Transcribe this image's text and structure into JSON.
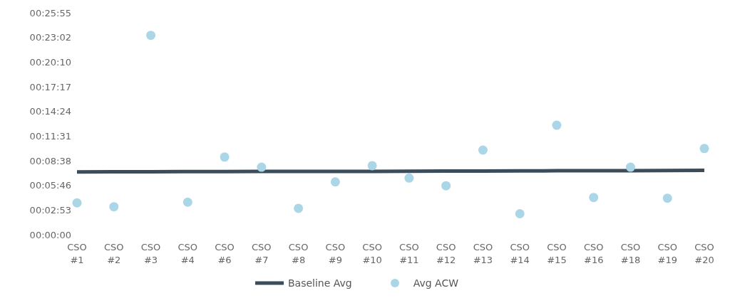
{
  "chart_data": {
    "type": "scatter",
    "categories": [
      "CSO #1",
      "CSO #2",
      "CSO #3",
      "CSO #4",
      "CSO #6",
      "CSO #7",
      "CSO #8",
      "CSO #9",
      "CSO #10",
      "CSO #11",
      "CSO #12",
      "CSO #13",
      "CSO #14",
      "CSO #15",
      "CSO #16",
      "CSO #18",
      "CSO #19",
      "CSO #20"
    ],
    "series": [
      {
        "name": "Baseline Avg",
        "type": "line",
        "marker": "none",
        "color": "#3b4d5a",
        "values": [
          440,
          441,
          441,
          442,
          442,
          443,
          443,
          444,
          444,
          445,
          446,
          446,
          447,
          448,
          448,
          449,
          450,
          451
        ]
      },
      {
        "name": "Avg ACW",
        "color": "#aad6e8",
        "values": [
          223,
          196,
          1397,
          228,
          544,
          473,
          185,
          370,
          484,
          397,
          343,
          593,
          147,
          767,
          261,
          473,
          256,
          604
        ]
      }
    ],
    "ylim": [
      0,
      1555
    ],
    "yticks": [
      {
        "value": 0,
        "label": "00:00:00"
      },
      {
        "value": 173,
        "label": "00:02:53"
      },
      {
        "value": 346,
        "label": "00:05:46"
      },
      {
        "value": 518,
        "label": "00:08:38"
      },
      {
        "value": 691,
        "label": "00:11:31"
      },
      {
        "value": 864,
        "label": "00:14:24"
      },
      {
        "value": 1037,
        "label": "00:17:17"
      },
      {
        "value": 1210,
        "label": "00:20:10"
      },
      {
        "value": 1382,
        "label": "00:23:02"
      },
      {
        "value": 1555,
        "label": "00:25:55"
      }
    ],
    "grid": false,
    "legend": "bottom",
    "marker": "circle",
    "line_style": "solid"
  }
}
